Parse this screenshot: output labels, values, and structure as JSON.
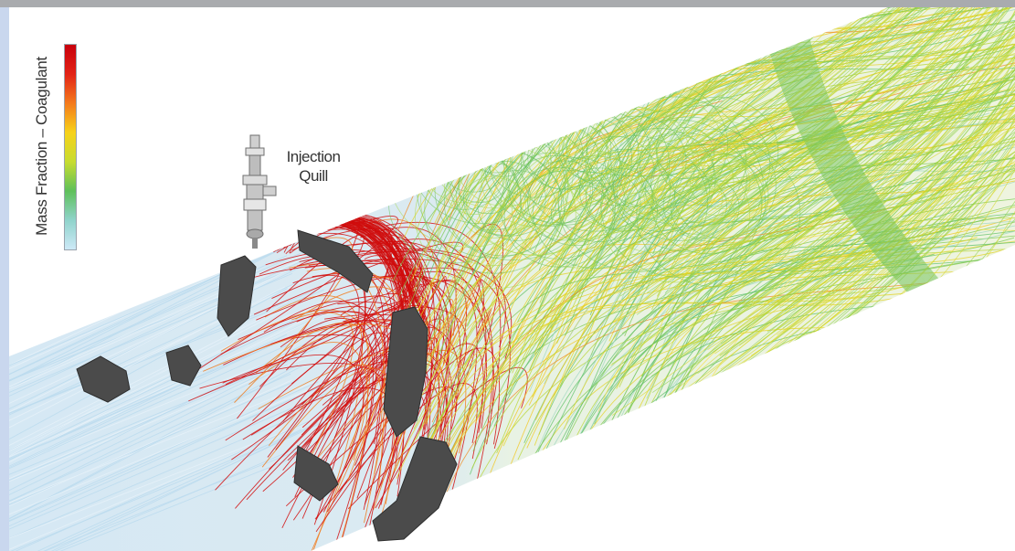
{
  "legend": {
    "title": "Mass Fraction – Coagulant",
    "gradient": [
      "#c8000c",
      "#e22317",
      "#f47a1c",
      "#f7d21a",
      "#c7dc30",
      "#5ec05a",
      "#8fd3cb",
      "#cde9f7"
    ]
  },
  "callout": {
    "line1": "Injection",
    "line2": "Quill"
  },
  "colors": {
    "frame": "#a9abae",
    "left_strip": "#c9d7ee",
    "pipe_inlet": "#cfe3f0",
    "mixer_blade": "#4a4a4a",
    "coagulant_high": "#d10a0a",
    "coagulant_mid": "#f2c418",
    "coagulant_low": "#6cc45d"
  },
  "icons": [
    "injection-quill-icon",
    "static-mixer-vane-icon"
  ]
}
